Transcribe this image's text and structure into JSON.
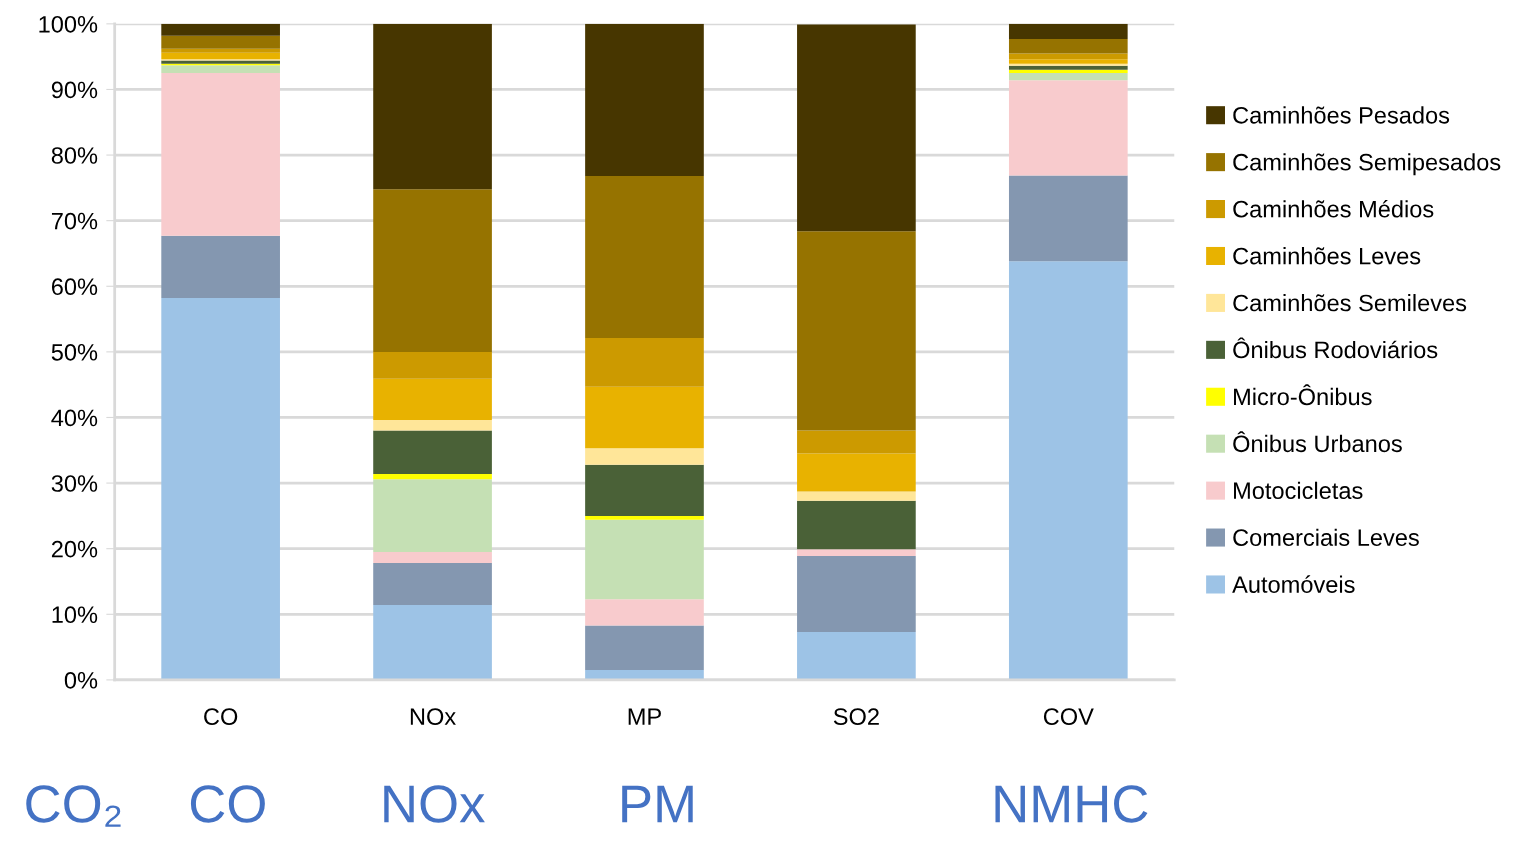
{
  "chart_data": {
    "type": "bar",
    "stacked": true,
    "categories": [
      "CO",
      "NOx",
      "MP",
      "SO2",
      "COV"
    ],
    "series": [
      {
        "name": "Automóveis",
        "color": "#9dc3e6",
        "values": [
          58.2,
          11.4,
          1.5,
          7.3,
          63.8
        ]
      },
      {
        "name": "Comerciais Leves",
        "color": "#8497b0",
        "values": [
          9.5,
          6.4,
          6.8,
          11.6,
          13.1
        ]
      },
      {
        "name": "Motocicletas",
        "color": "#f8cbcd",
        "values": [
          24.8,
          1.7,
          4.0,
          1.0,
          14.5
        ]
      },
      {
        "name": "Ônibus Urbanos",
        "color": "#c5e0b4",
        "values": [
          1.2,
          11.1,
          12.1,
          null,
          1.1
        ]
      },
      {
        "name": "Micro-Ônibus",
        "color": "#ffff00",
        "values": [
          0.2,
          0.8,
          0.6,
          0.0,
          0.5
        ]
      },
      {
        "name": "Ônibus Rodoviários",
        "color": "#4a6137",
        "values": [
          0.5,
          6.6,
          7.8,
          7.4,
          0.6
        ]
      },
      {
        "name": "Caminhões Semileves",
        "color": "#ffe699",
        "values": [
          0.2,
          1.6,
          2.5,
          1.4,
          0.3
        ]
      },
      {
        "name": "Caminhões Leves",
        "color": "#e8b200",
        "values": [
          1.0,
          6.3,
          9.4,
          5.8,
          0.7
        ]
      },
      {
        "name": "Caminhões Médios",
        "color": "#cc9a00",
        "values": [
          0.6,
          4.1,
          7.4,
          3.5,
          0.9
        ]
      },
      {
        "name": "Caminhões Semipesados",
        "color": "#967300",
        "values": [
          2.0,
          24.8,
          24.7,
          30.4,
          2.2
        ]
      },
      {
        "name": "Caminhões Pesados",
        "color": "#473600",
        "values": [
          1.8,
          25.2,
          23.2,
          31.5,
          2.3
        ]
      }
    ],
    "ylim": [
      0,
      100
    ],
    "yticks": [
      {
        "value": 0,
        "label": "0%"
      },
      {
        "value": 10,
        "label": "10%"
      },
      {
        "value": 20,
        "label": "20%"
      },
      {
        "value": 30,
        "label": "30%"
      },
      {
        "value": 40,
        "label": "40%"
      },
      {
        "value": 50,
        "label": "50%"
      },
      {
        "value": 60,
        "label": "60%"
      },
      {
        "value": 70,
        "label": "70%"
      },
      {
        "value": 80,
        "label": "80%"
      },
      {
        "value": 90,
        "label": "90%"
      },
      {
        "value": 100,
        "label": "100%"
      }
    ],
    "grid": "y",
    "legend": "right",
    "annotations": [
      "CO₂",
      "CO",
      "NOx",
      "PM",
      "NMHC"
    ]
  }
}
